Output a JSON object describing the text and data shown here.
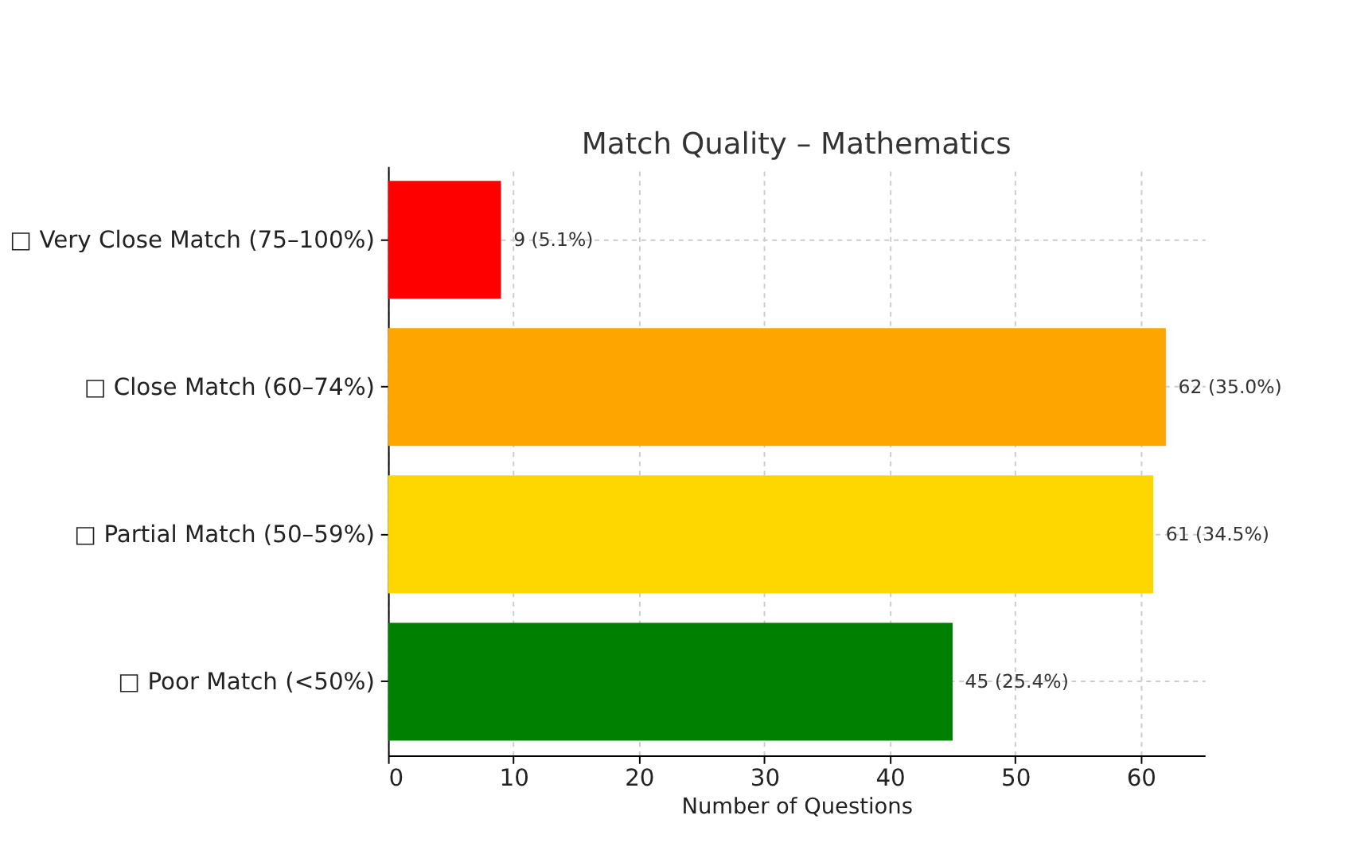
{
  "chart_data": {
    "type": "bar",
    "orientation": "horizontal",
    "title": "Match Quality – Mathematics",
    "xlabel": "Number of Questions",
    "categories": [
      "□ Very Close Match (75–100%)",
      "□ Close Match (60–74%)",
      "□ Partial Match (50–59%)",
      "□ Poor Match (<50%)"
    ],
    "values": [
      9,
      62,
      61,
      45
    ],
    "colors": [
      "#ff0000",
      "#ffa500",
      "#ffd700",
      "#008000"
    ],
    "value_labels": [
      "9 (5.1%)",
      "62 (35.0%)",
      "61 (34.5%)",
      "45 (25.4%)"
    ],
    "xlim": [
      0,
      65.1
    ],
    "xticks": [
      0,
      10,
      20,
      30,
      40,
      50,
      60
    ],
    "grid": true
  }
}
